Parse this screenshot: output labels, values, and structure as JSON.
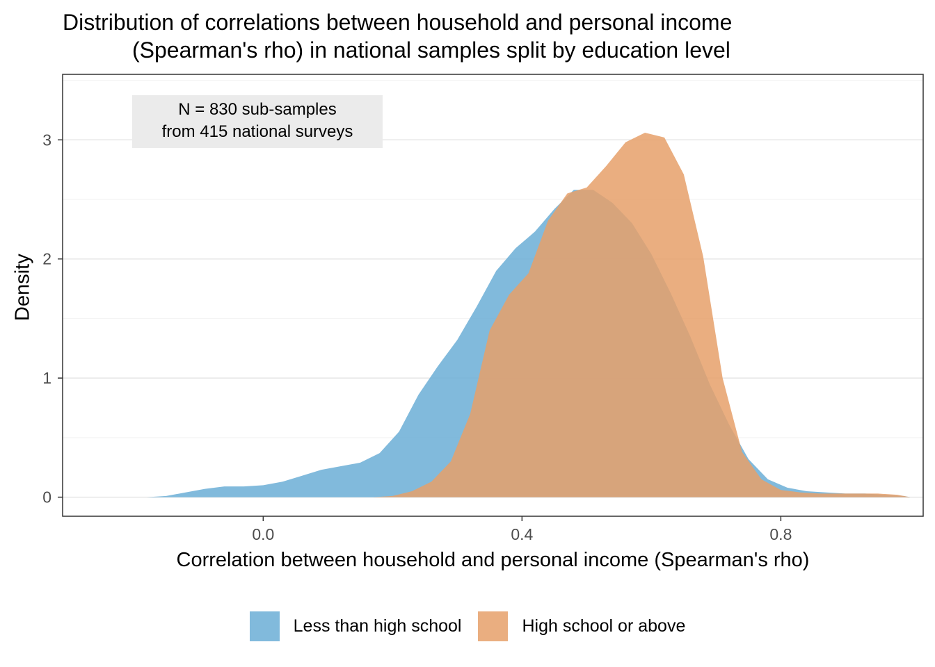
{
  "title_lines": [
    "Distribution of correlations between household and personal income",
    "(Spearman's rho) in national samples split by education level"
  ],
  "annotation_lines": [
    "N = 830 sub-samples",
    "from 415 national surveys"
  ],
  "chart_data": {
    "type": "area",
    "xlabel": "Correlation between household and personal income (Spearman's rho)",
    "ylabel": "Density",
    "xlim": [
      -0.31,
      1.02
    ],
    "ylim": [
      -0.16,
      3.55
    ],
    "x_ticks": [
      0.0,
      0.4,
      0.8
    ],
    "x_tick_labels": [
      "0.0",
      "0.4",
      "0.8"
    ],
    "y_ticks": [
      0,
      1,
      2,
      3
    ],
    "y_tick_labels": [
      "0",
      "1",
      "2",
      "3"
    ],
    "grid": true,
    "legend_position": "bottom",
    "series": [
      {
        "name": "Less than high school",
        "color": "#6baed6",
        "x": [
          -0.18,
          -0.15,
          -0.12,
          -0.09,
          -0.06,
          -0.03,
          0.0,
          0.03,
          0.06,
          0.09,
          0.12,
          0.15,
          0.18,
          0.21,
          0.24,
          0.27,
          0.3,
          0.33,
          0.36,
          0.39,
          0.42,
          0.45,
          0.48,
          0.51,
          0.54,
          0.57,
          0.6,
          0.63,
          0.66,
          0.69,
          0.72,
          0.75,
          0.78,
          0.81,
          0.84,
          0.87,
          0.9,
          0.93,
          0.96,
          0.99,
          1.0
        ],
        "y": [
          0.0,
          0.01,
          0.04,
          0.07,
          0.09,
          0.09,
          0.1,
          0.13,
          0.18,
          0.23,
          0.26,
          0.29,
          0.37,
          0.55,
          0.86,
          1.1,
          1.32,
          1.6,
          1.9,
          2.09,
          2.23,
          2.42,
          2.58,
          2.58,
          2.47,
          2.3,
          2.04,
          1.71,
          1.35,
          0.95,
          0.61,
          0.32,
          0.15,
          0.08,
          0.05,
          0.04,
          0.03,
          0.03,
          0.02,
          0.01,
          0.0
        ]
      },
      {
        "name": "High school or above",
        "color": "#e6a06a",
        "x": [
          0.17,
          0.2,
          0.23,
          0.26,
          0.29,
          0.32,
          0.35,
          0.38,
          0.41,
          0.44,
          0.47,
          0.5,
          0.53,
          0.56,
          0.59,
          0.62,
          0.65,
          0.68,
          0.71,
          0.74,
          0.77,
          0.8,
          0.83,
          0.86,
          0.89,
          0.92,
          0.95,
          0.98,
          1.0
        ],
        "y": [
          0.0,
          0.01,
          0.05,
          0.13,
          0.3,
          0.7,
          1.4,
          1.7,
          1.88,
          2.32,
          2.55,
          2.6,
          2.78,
          2.98,
          3.06,
          3.02,
          2.71,
          2.02,
          1.0,
          0.38,
          0.15,
          0.06,
          0.04,
          0.03,
          0.03,
          0.03,
          0.03,
          0.02,
          0.0
        ]
      }
    ]
  }
}
